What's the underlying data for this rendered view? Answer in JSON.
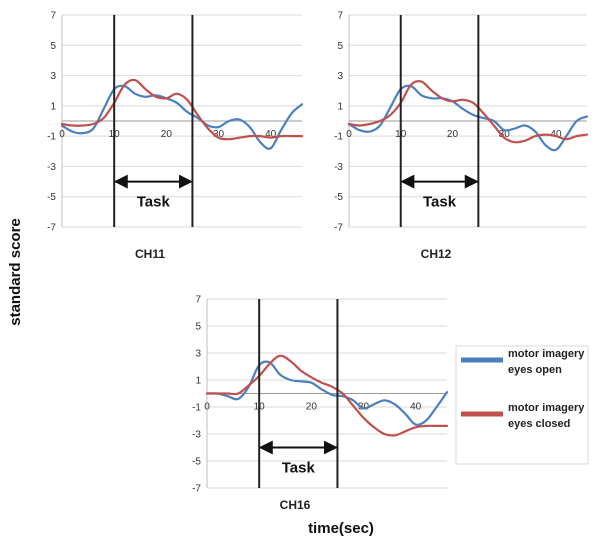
{
  "figure": {
    "ylabel": "standard score",
    "xlabel": "time(sec)"
  },
  "legend": {
    "placement": "right",
    "items": [
      {
        "line1": "motor imagery",
        "line2": "eyes open",
        "color": "#4a7fc0"
      },
      {
        "line1": "motor imagery",
        "line2": "eyes closed",
        "color": "#c0504d"
      }
    ]
  },
  "chart_data": [
    {
      "type": "line",
      "title": "CH11",
      "task_label": "Task",
      "task_window": [
        10,
        25
      ],
      "xlim": [
        0,
        46
      ],
      "ylim": [
        -7,
        7
      ],
      "x_ticks": [
        "0",
        "10",
        "20",
        "30",
        "40"
      ],
      "x_tick_values": [
        0,
        10,
        20,
        30,
        40
      ],
      "y_ticks": [
        "7",
        "5",
        "3",
        "1",
        "-1",
        "-3",
        "-5",
        "-7"
      ],
      "y_tick_values": [
        7,
        5,
        3,
        1,
        -1,
        -3,
        -5,
        -7
      ],
      "grid": true,
      "series": [
        {
          "name": "motor imagery eyes open",
          "color": "#4a7fc0",
          "x": [
            0,
            2,
            4,
            6,
            8,
            10,
            12,
            14,
            16,
            18,
            20,
            22,
            24,
            26,
            28,
            30,
            32,
            34,
            36,
            38,
            40,
            42,
            44,
            46
          ],
          "y": [
            -0.3,
            -0.7,
            -0.8,
            -0.5,
            0.8,
            2.1,
            2.3,
            1.8,
            1.6,
            1.7,
            1.5,
            1.2,
            0.6,
            0.2,
            -0.3,
            -0.4,
            0,
            0.1,
            -0.4,
            -1.4,
            -1.8,
            -0.6,
            0.5,
            1.1
          ]
        },
        {
          "name": "motor imagery eyes closed",
          "color": "#c0504d",
          "x": [
            0,
            2,
            4,
            6,
            8,
            10,
            12,
            14,
            16,
            18,
            20,
            22,
            24,
            26,
            28,
            30,
            32,
            34,
            36,
            38,
            40,
            42,
            44,
            46
          ],
          "y": [
            -0.2,
            -0.3,
            -0.3,
            -0.2,
            0.2,
            1.2,
            2.4,
            2.7,
            2.1,
            1.6,
            1.5,
            1.8,
            1.4,
            0.4,
            -0.5,
            -1.1,
            -1.2,
            -1.1,
            -1.0,
            -1.0,
            -1.1,
            -1.0,
            -1.0,
            -1.0
          ]
        }
      ]
    },
    {
      "type": "line",
      "title": "CH12",
      "task_label": "Task",
      "task_window": [
        10,
        25
      ],
      "xlim": [
        0,
        46
      ],
      "ylim": [
        -7,
        7
      ],
      "x_ticks": [
        "0",
        "10",
        "20",
        "30",
        "40"
      ],
      "x_tick_values": [
        0,
        10,
        20,
        30,
        40
      ],
      "y_ticks": [
        "7",
        "5",
        "3",
        "1",
        "-1",
        "-3",
        "-5",
        "-7"
      ],
      "y_tick_values": [
        7,
        5,
        3,
        1,
        -1,
        -3,
        -5,
        -7
      ],
      "grid": true,
      "series": [
        {
          "name": "motor imagery eyes open",
          "color": "#4a7fc0",
          "x": [
            0,
            2,
            4,
            6,
            8,
            10,
            12,
            14,
            16,
            18,
            20,
            22,
            24,
            26,
            28,
            30,
            32,
            34,
            36,
            38,
            40,
            42,
            44,
            46
          ],
          "y": [
            -0.2,
            -0.6,
            -0.7,
            -0.3,
            0.9,
            2.1,
            2.3,
            1.7,
            1.5,
            1.5,
            1.3,
            0.8,
            0.4,
            0.2,
            0,
            -0.6,
            -0.5,
            -0.3,
            -0.7,
            -1.6,
            -1.9,
            -1.0,
            0,
            0.3
          ]
        },
        {
          "name": "motor imagery eyes closed",
          "color": "#c0504d",
          "x": [
            0,
            2,
            4,
            6,
            8,
            10,
            12,
            14,
            16,
            18,
            20,
            22,
            24,
            26,
            28,
            30,
            32,
            34,
            36,
            38,
            40,
            42,
            44,
            46
          ],
          "y": [
            -0.2,
            -0.3,
            -0.2,
            0,
            0.4,
            1.2,
            2.4,
            2.6,
            2.0,
            1.5,
            1.3,
            1.4,
            1.2,
            0.5,
            -0.3,
            -1.1,
            -1.4,
            -1.3,
            -1.0,
            -0.9,
            -1.0,
            -1.2,
            -1.0,
            -0.9
          ]
        }
      ]
    },
    {
      "type": "line",
      "title": "CH16",
      "task_label": "Task",
      "task_window": [
        10,
        25
      ],
      "xlim": [
        0,
        46
      ],
      "ylim": [
        -7,
        7
      ],
      "x_ticks": [
        "0",
        "10",
        "20",
        "30",
        "40"
      ],
      "x_tick_values": [
        0,
        10,
        20,
        30,
        40
      ],
      "y_ticks": [
        "7",
        "5",
        "3",
        "1",
        "-1",
        "-3",
        "-5",
        "-7"
      ],
      "y_tick_values": [
        7,
        5,
        3,
        1,
        -1,
        -3,
        -5,
        -7
      ],
      "grid": true,
      "series": [
        {
          "name": "motor imagery eyes open",
          "color": "#4a7fc0",
          "x": [
            0,
            2,
            4,
            6,
            8,
            10,
            12,
            14,
            16,
            18,
            20,
            22,
            24,
            26,
            28,
            30,
            32,
            34,
            36,
            38,
            40,
            42,
            44,
            46
          ],
          "y": [
            0,
            0,
            -0.2,
            -0.4,
            0.5,
            2.1,
            2.3,
            1.4,
            1.0,
            0.9,
            0.8,
            0.3,
            -0.1,
            -0.2,
            -0.5,
            -1.1,
            -0.8,
            -0.5,
            -0.8,
            -1.5,
            -2.3,
            -2.0,
            -1.0,
            0.1
          ]
        },
        {
          "name": "motor imagery eyes closed",
          "color": "#c0504d",
          "x": [
            0,
            2,
            4,
            6,
            8,
            10,
            12,
            14,
            16,
            18,
            20,
            22,
            24,
            26,
            28,
            30,
            32,
            34,
            36,
            38,
            40,
            42,
            44,
            46
          ],
          "y": [
            0,
            0,
            0,
            0,
            0.6,
            1.3,
            2.2,
            2.8,
            2.4,
            1.7,
            1.2,
            0.8,
            0.5,
            0,
            -0.9,
            -1.8,
            -2.5,
            -3.0,
            -3.1,
            -2.8,
            -2.5,
            -2.4,
            -2.4,
            -2.4
          ]
        }
      ]
    }
  ]
}
